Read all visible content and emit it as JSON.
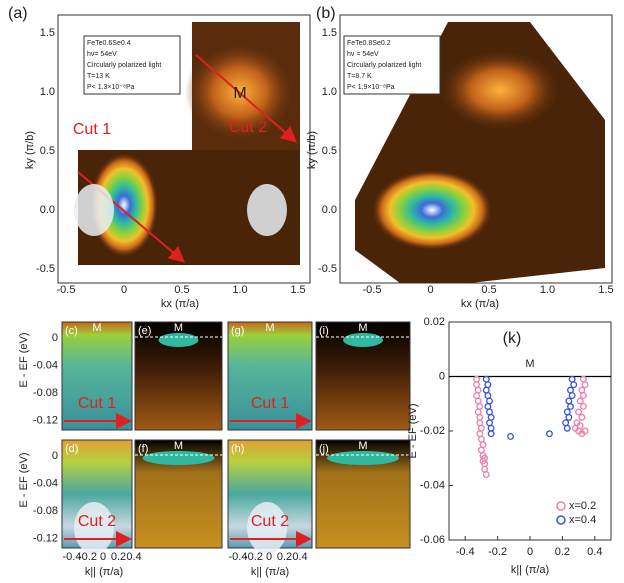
{
  "maps": [
    {
      "label": "(a)",
      "xlabel": "kx (π/a)",
      "ylabel": "ky (π/b)",
      "xticks": [
        "-0.5",
        "0",
        "0.5",
        "1.0",
        "1.5"
      ],
      "yticks": [
        "1.5",
        "1.0",
        "0.5",
        "0.0",
        "-0.5"
      ],
      "info": [
        "FeTe0.6Se0.4",
        "hν= 54eV",
        "Circularly polarized light",
        "T=13 K",
        "P< 1.3×10⁻⁸Pa"
      ],
      "cut1": "Cut 1",
      "cut2": "Cut 2",
      "marker": "M"
    },
    {
      "label": "(b)",
      "xlabel": "kx (π/a)",
      "ylabel": "ky (π/b)",
      "xticks": [
        "-0.5",
        "0",
        "0.5",
        "1.0",
        "1.5"
      ],
      "yticks": [
        "1.5",
        "1.0",
        "0.5",
        "0.0",
        "-0.5"
      ],
      "info": [
        "FeTe0.8Se0.2",
        "hν = 54eV",
        "Circularly polarized light",
        "T=8.7 K",
        "P< 1.9×10⁻⁸Pa"
      ]
    }
  ],
  "cuts": {
    "ylabel": "E - EF (eV)",
    "xlabel": "k|| (π/a)",
    "yticks": [
      "0",
      "-0.04",
      "-0.08",
      "-0.12"
    ],
    "xticks": [
      "-0.4",
      "-0.2",
      "0",
      "0.2",
      "0.4"
    ],
    "panels": [
      {
        "label": "(c)",
        "marker": "M",
        "cut": "Cut 1"
      },
      {
        "label": "(d)",
        "cut": "Cut 2"
      },
      {
        "label": "(e)",
        "marker": "M"
      },
      {
        "label": "(f)",
        "marker": "M"
      },
      {
        "label": "(g)",
        "marker": "M",
        "cut": "Cut 1"
      },
      {
        "label": "(h)",
        "cut": "Cut 2"
      },
      {
        "label": "(i)",
        "marker": "M"
      },
      {
        "label": "(j)",
        "marker": "M"
      }
    ]
  },
  "chart_data": {
    "type": "scatter",
    "title": "(k)",
    "annotation": "M",
    "xlabel": "k|| (π/a)",
    "ylabel": "E - EF (eV)",
    "xlim": [
      -0.5,
      0.5
    ],
    "ylim": [
      -0.06,
      0.02
    ],
    "xticks": [
      -0.4,
      -0.2,
      0,
      0.2,
      0.4
    ],
    "yticks": [
      0.02,
      0,
      -0.02,
      -0.04,
      -0.06
    ],
    "legend": "lower right",
    "series": [
      {
        "name": "x=0.2",
        "color": "#ec7fae",
        "x": [
          -0.33,
          -0.33,
          -0.32,
          -0.33,
          -0.32,
          -0.31,
          -0.32,
          -0.31,
          -0.31,
          -0.3,
          -0.31,
          -0.3,
          -0.29,
          -0.3,
          -0.29,
          -0.28,
          -0.29,
          -0.28,
          -0.28,
          -0.27,
          0.33,
          0.34,
          0.32,
          0.33,
          0.31,
          0.33,
          0.3,
          0.32,
          0.29,
          0.31,
          0.3,
          0.28,
          0.32,
          0.34
        ],
        "values": [
          -0.001,
          -0.003,
          -0.005,
          -0.007,
          -0.009,
          -0.011,
          -0.013,
          -0.015,
          -0.017,
          -0.019,
          -0.021,
          -0.023,
          -0.025,
          -0.027,
          -0.029,
          -0.03,
          -0.031,
          -0.032,
          -0.034,
          -0.036,
          -0.001,
          -0.003,
          -0.005,
          -0.007,
          -0.009,
          -0.011,
          -0.013,
          -0.015,
          -0.017,
          -0.018,
          -0.02,
          -0.019,
          -0.021,
          -0.02
        ]
      },
      {
        "name": "x=0.4",
        "color": "#3355dd",
        "x": [
          -0.27,
          -0.26,
          -0.27,
          -0.26,
          -0.25,
          -0.26,
          -0.25,
          -0.24,
          -0.25,
          -0.24,
          -0.24,
          -0.12,
          0.26,
          0.27,
          0.25,
          0.26,
          0.24,
          0.25,
          0.23,
          0.24,
          0.22,
          0.23,
          0.12
        ],
        "values": [
          -0.001,
          -0.003,
          -0.005,
          -0.007,
          -0.009,
          -0.011,
          -0.013,
          -0.015,
          -0.017,
          -0.019,
          -0.021,
          -0.022,
          -0.001,
          -0.003,
          -0.005,
          -0.007,
          -0.009,
          -0.011,
          -0.013,
          -0.015,
          -0.017,
          -0.019,
          -0.021
        ]
      }
    ]
  }
}
